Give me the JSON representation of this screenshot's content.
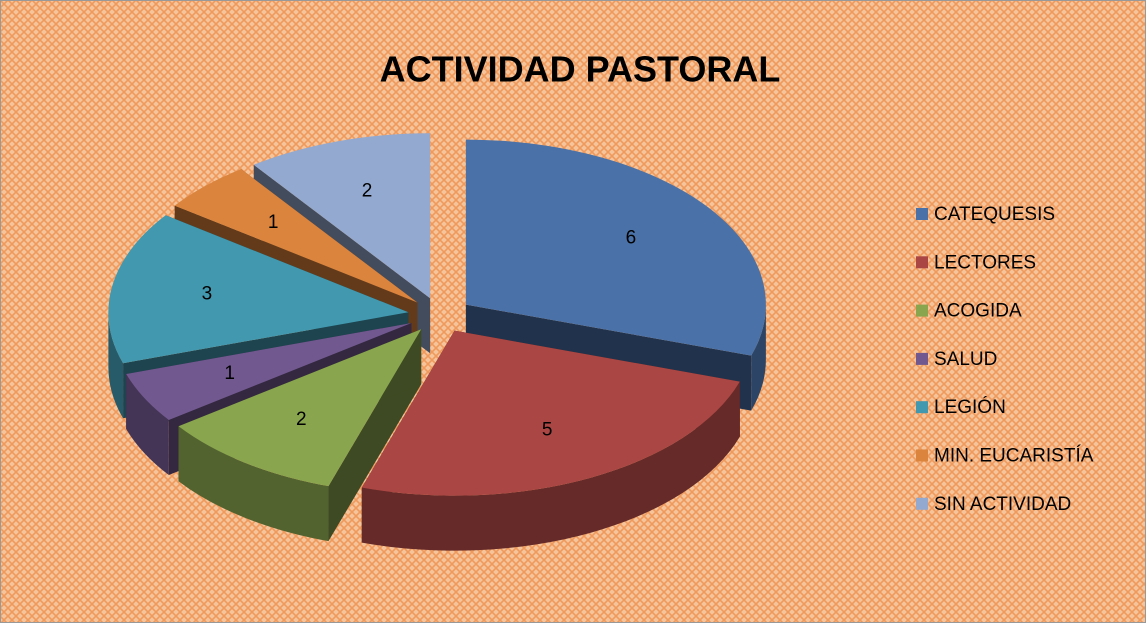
{
  "chart_data": {
    "type": "pie3d",
    "title": "ACTIVIDAD PASTORAL",
    "categories": [
      "CATEQUESIS",
      "LECTORES",
      "ACOGIDA",
      "SALUD",
      "LEGIÓN",
      "MIN. EUCARISTÍA",
      "SIN ACTIVIDAD"
    ],
    "values": [
      6,
      5,
      2,
      1,
      3,
      1,
      2
    ],
    "colors": [
      "#4a72a8",
      "#aa4643",
      "#89a54e",
      "#71588f",
      "#4198af",
      "#db843d",
      "#93a9cf"
    ],
    "legend": "right"
  }
}
